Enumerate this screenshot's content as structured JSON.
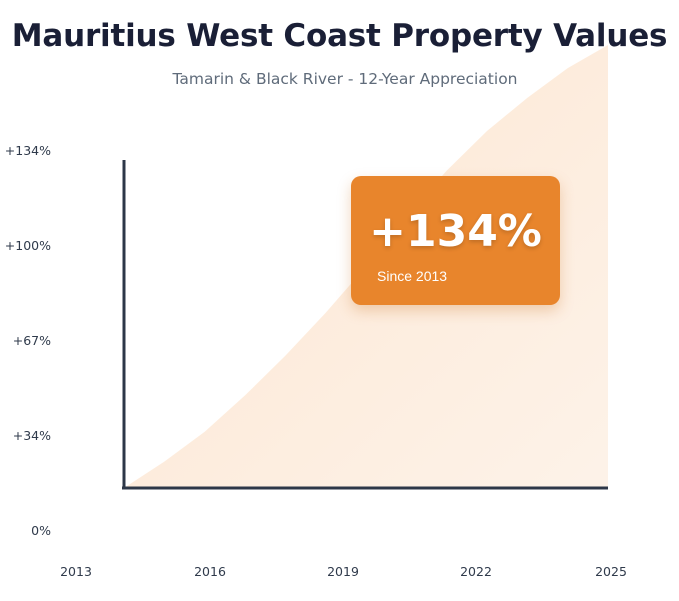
{
  "title": "Mauritius West Coast Property Values",
  "subtitle": "Tamarin & Black River - 12-Year Appreciation",
  "callout": {
    "value": "+134%",
    "label": "Since 2013"
  },
  "colors": {
    "accent": "#e8852c",
    "axis": "#2d3748",
    "area": "#fde9d6"
  },
  "chart_data": {
    "type": "area",
    "x": [
      2013,
      2014,
      2015,
      2016,
      2017,
      2018,
      2019,
      2020,
      2021,
      2022,
      2023,
      2024,
      2025
    ],
    "series": [
      {
        "values": [
          0,
          8,
          17,
          28,
          40,
          53,
          67,
          82,
          96,
          108,
          118,
          127,
          134
        ]
      }
    ],
    "ytick_labels": [
      "0%",
      "+34%",
      "+67%",
      "+100%",
      "+134%"
    ],
    "xtick_labels": [
      "2013",
      "2016",
      "2019",
      "2022",
      "2025"
    ],
    "ylim": [
      0,
      134
    ],
    "xlim": [
      2013,
      2025
    ],
    "grid": false
  }
}
